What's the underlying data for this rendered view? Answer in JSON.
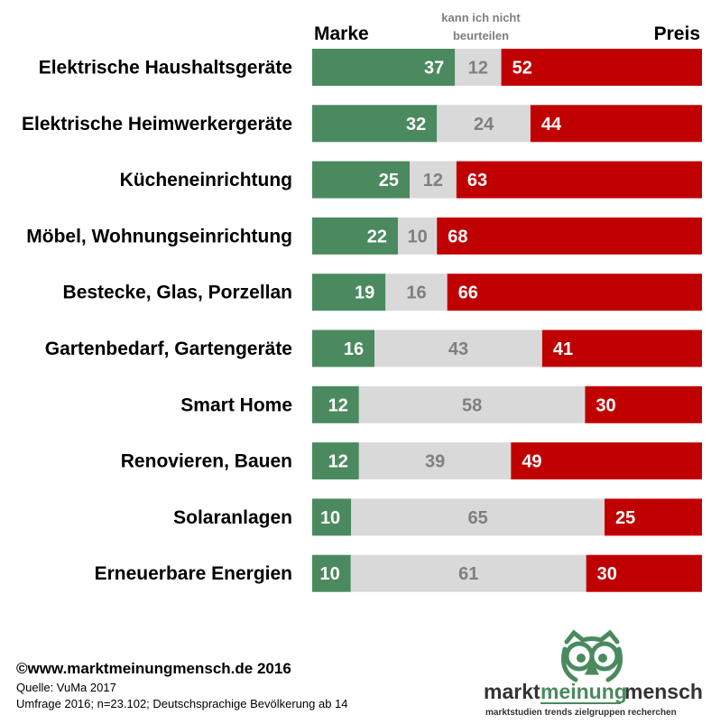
{
  "colors": {
    "marke": "#4a8a5e",
    "neutral": "#d9d9d9",
    "preis": "#c00000",
    "neutral_text": "#7f7f7f",
    "logo_green": "#4a8a5e"
  },
  "chart_data": {
    "type": "bar",
    "stacked": true,
    "orientation": "horizontal",
    "xlim": [
      0,
      100
    ],
    "grid": false,
    "headers": {
      "left": "Marke",
      "middle_line1": "kann ich nicht",
      "middle_line2": "beurteilen",
      "right": "Preis"
    },
    "categories": [
      "Elektrische Haushaltsgeräte",
      "Elektrische Heimwerkergeräte",
      "Kücheneinrichtung",
      "Möbel, Wohnungseinrichtung",
      "Bestecke, Glas, Porzellan",
      "Gartenbedarf, Gartengeräte",
      "Smart Home",
      "Renovieren, Bauen",
      "Solaranlagen",
      "Erneuerbare Energien"
    ],
    "series": [
      {
        "name": "Marke",
        "values": [
          37,
          32,
          25,
          22,
          19,
          16,
          12,
          12,
          10,
          10
        ]
      },
      {
        "name": "kann ich nicht beurteilen",
        "values": [
          12,
          24,
          12,
          10,
          16,
          43,
          58,
          39,
          65,
          61
        ]
      },
      {
        "name": "Preis",
        "values": [
          52,
          44,
          63,
          68,
          66,
          41,
          30,
          49,
          25,
          30
        ]
      }
    ]
  },
  "footer": {
    "copyright": "©www.marktmeinungmensch.de 2016",
    "source": "Quelle: VuMa 2017",
    "survey": "Umfrage 2016; n=23.102; Deutschsprachige Bevölkerung ab 14"
  },
  "logo": {
    "word1": "markt",
    "word2": "meinung",
    "word3": "mensch",
    "tagline": "marktstudien trends zielgruppen recherchen",
    "icon": "owl-icon"
  }
}
